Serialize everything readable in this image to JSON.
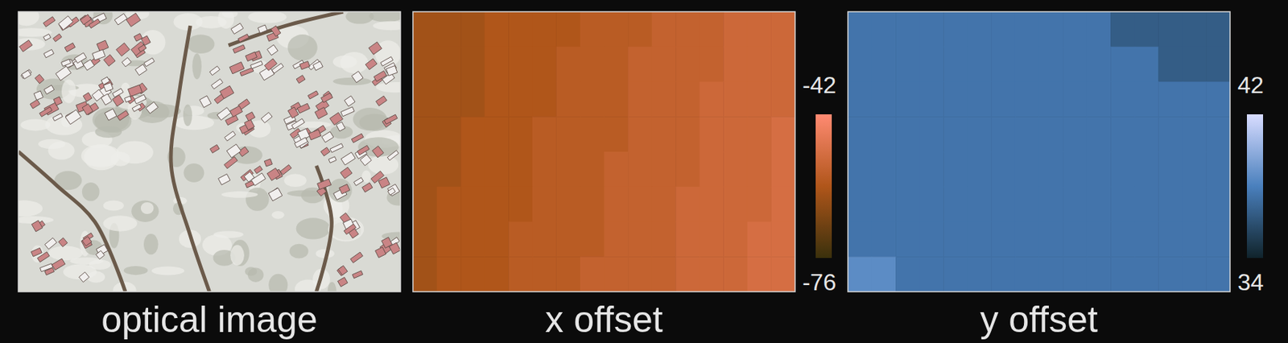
{
  "chart_data": [
    {
      "type": "image",
      "title": "optical image"
    },
    {
      "type": "heatmap",
      "title": "x offset",
      "tick_labels": false,
      "cells": [
        [
          -61,
          -61,
          -61,
          -59,
          -59,
          -59,
          -59,
          -57,
          -57,
          -57,
          -55,
          -55,
          -55,
          -53,
          -53,
          -53
        ],
        [
          -61,
          -61,
          -61,
          -59,
          -59,
          -59,
          -57,
          -57,
          -57,
          -55,
          -55,
          -55,
          -55,
          -53,
          -53,
          -53
        ],
        [
          -61,
          -61,
          -61,
          -59,
          -59,
          -59,
          -57,
          -57,
          -57,
          -55,
          -55,
          -55,
          -53,
          -53,
          -53,
          -53
        ],
        [
          -61,
          -61,
          -59,
          -59,
          -59,
          -57,
          -57,
          -57,
          -57,
          -55,
          -55,
          -55,
          -53,
          -53,
          -53,
          -51
        ],
        [
          -61,
          -61,
          -59,
          -59,
          -59,
          -57,
          -57,
          -57,
          -55,
          -55,
          -55,
          -55,
          -53,
          -53,
          -53,
          -51
        ],
        [
          -61,
          -59,
          -59,
          -59,
          -59,
          -57,
          -57,
          -57,
          -55,
          -55,
          -55,
          -53,
          -53,
          -53,
          -53,
          -51
        ],
        [
          -61,
          -59,
          -59,
          -59,
          -57,
          -57,
          -57,
          -57,
          -55,
          -55,
          -55,
          -53,
          -53,
          -53,
          -51,
          -51
        ],
        [
          -61,
          -59,
          -59,
          -59,
          -57,
          -57,
          -57,
          -55,
          -55,
          -55,
          -55,
          -53,
          -53,
          -53,
          -51,
          -51
        ]
      ],
      "color_range": [
        -76,
        -42
      ],
      "color_ticks": [
        -76,
        -42
      ]
    },
    {
      "type": "heatmap",
      "title": "y offset",
      "tick_labels": false,
      "cells": [
        [
          37.5,
          37.5,
          37.5,
          37.5,
          37.5,
          37.5,
          37.5,
          37.5,
          37.5,
          37.5,
          37.5,
          36.5,
          36.5,
          36.5,
          36.5,
          36.5
        ],
        [
          37.5,
          37.5,
          37.5,
          37.5,
          37.5,
          37.5,
          37.5,
          37.5,
          37.5,
          37.5,
          37.5,
          37.5,
          37.5,
          36.5,
          36.5,
          36.5
        ],
        [
          37.5,
          37.5,
          37.5,
          37.5,
          37.5,
          37.5,
          37.5,
          37.5,
          37.5,
          37.5,
          37.5,
          37.5,
          37.5,
          37.5,
          37.5,
          37.5
        ],
        [
          37.5,
          37.5,
          37.5,
          37.5,
          37.5,
          37.5,
          37.5,
          37.5,
          37.5,
          37.5,
          37.5,
          37.5,
          37.5,
          37.5,
          37.5,
          37.5
        ],
        [
          37.5,
          37.5,
          37.5,
          37.5,
          37.5,
          37.5,
          37.5,
          37.5,
          37.5,
          37.5,
          37.5,
          37.5,
          37.5,
          37.5,
          37.5,
          37.5
        ],
        [
          37.5,
          37.5,
          37.5,
          37.5,
          37.5,
          37.5,
          37.5,
          37.5,
          37.5,
          37.5,
          37.5,
          37.5,
          37.5,
          37.5,
          37.5,
          37.5
        ],
        [
          37.5,
          37.5,
          37.5,
          37.5,
          37.5,
          37.5,
          37.5,
          37.5,
          37.5,
          37.5,
          37.5,
          37.5,
          37.5,
          37.5,
          37.5,
          37.5
        ],
        [
          38.5,
          38.5,
          37.5,
          37.5,
          37.5,
          37.5,
          37.5,
          37.5,
          37.5,
          37.5,
          37.5,
          37.5,
          37.5,
          37.5,
          37.5,
          37.5
        ]
      ],
      "color_range": [
        34,
        42
      ],
      "color_ticks": [
        34,
        42
      ]
    }
  ]
}
